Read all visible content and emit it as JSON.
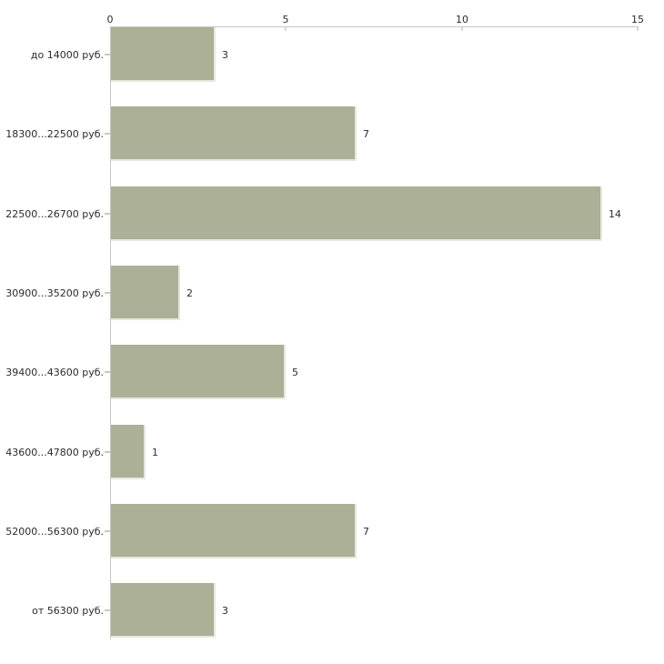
{
  "chart_data": {
    "type": "bar",
    "orientation": "horizontal",
    "title": "",
    "categories": [
      "до 14000 руб.",
      "18300...22500 руб.",
      "22500...26700 руб.",
      "30900...35200 руб.",
      "39400...43600 руб.",
      "43600...47800 руб.",
      "52000...56300 руб.",
      "от 56300 руб."
    ],
    "values": [
      3,
      7,
      14,
      2,
      5,
      1,
      7,
      3
    ],
    "xlabel": "",
    "ylabel": "",
    "xlim": [
      0,
      15
    ],
    "x_ticks": [
      0,
      5,
      10,
      15
    ],
    "grid": "off",
    "legend": "none",
    "colors": {
      "bar_fill": "#abb096",
      "bar_edge": "#e6e8de",
      "axis": "#c6c6c6",
      "x_tick": "#d9dcc6",
      "y_tick": "#c9cbbd",
      "text": "#2b2b2b",
      "background": "#ffffff"
    }
  }
}
